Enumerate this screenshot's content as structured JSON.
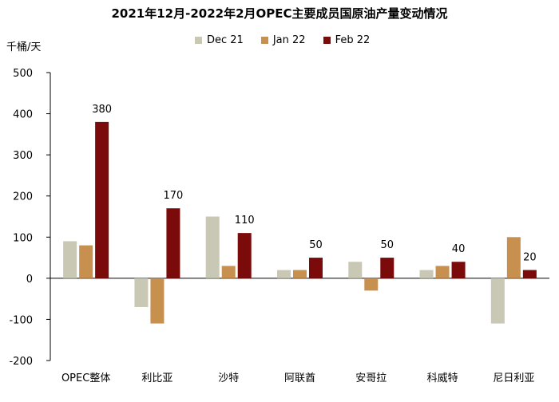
{
  "chart_data": {
    "type": "bar",
    "title": "2021年12月-2022年2月OPEC主要成员国原油产量变动情况",
    "unit_label": "千桶/天",
    "categories": [
      "OPEC整体",
      "利比亚",
      "沙特",
      "阿联酋",
      "安哥拉",
      "科威特",
      "尼日利亚"
    ],
    "series": [
      {
        "name": "Dec 21",
        "color": "#c8c8b4",
        "values": [
          90,
          -70,
          150,
          20,
          40,
          20,
          -110
        ]
      },
      {
        "name": "Jan 22",
        "color": "#c8904f",
        "values": [
          80,
          -110,
          30,
          20,
          -30,
          30,
          100
        ]
      },
      {
        "name": "Feb 22",
        "color": "#7b0a0a",
        "values": [
          380,
          170,
          110,
          50,
          50,
          40,
          20
        ]
      }
    ],
    "data_labels": {
      "series": "Feb 22",
      "labels": [
        "380",
        "170",
        "110",
        "50",
        "50",
        "40",
        "20"
      ]
    },
    "ylim": [
      -200,
      500
    ],
    "yticks": [
      "500",
      "400",
      "300",
      "200",
      "100",
      "0",
      "-100",
      "-200"
    ],
    "legend_position": "top",
    "grid": false
  }
}
